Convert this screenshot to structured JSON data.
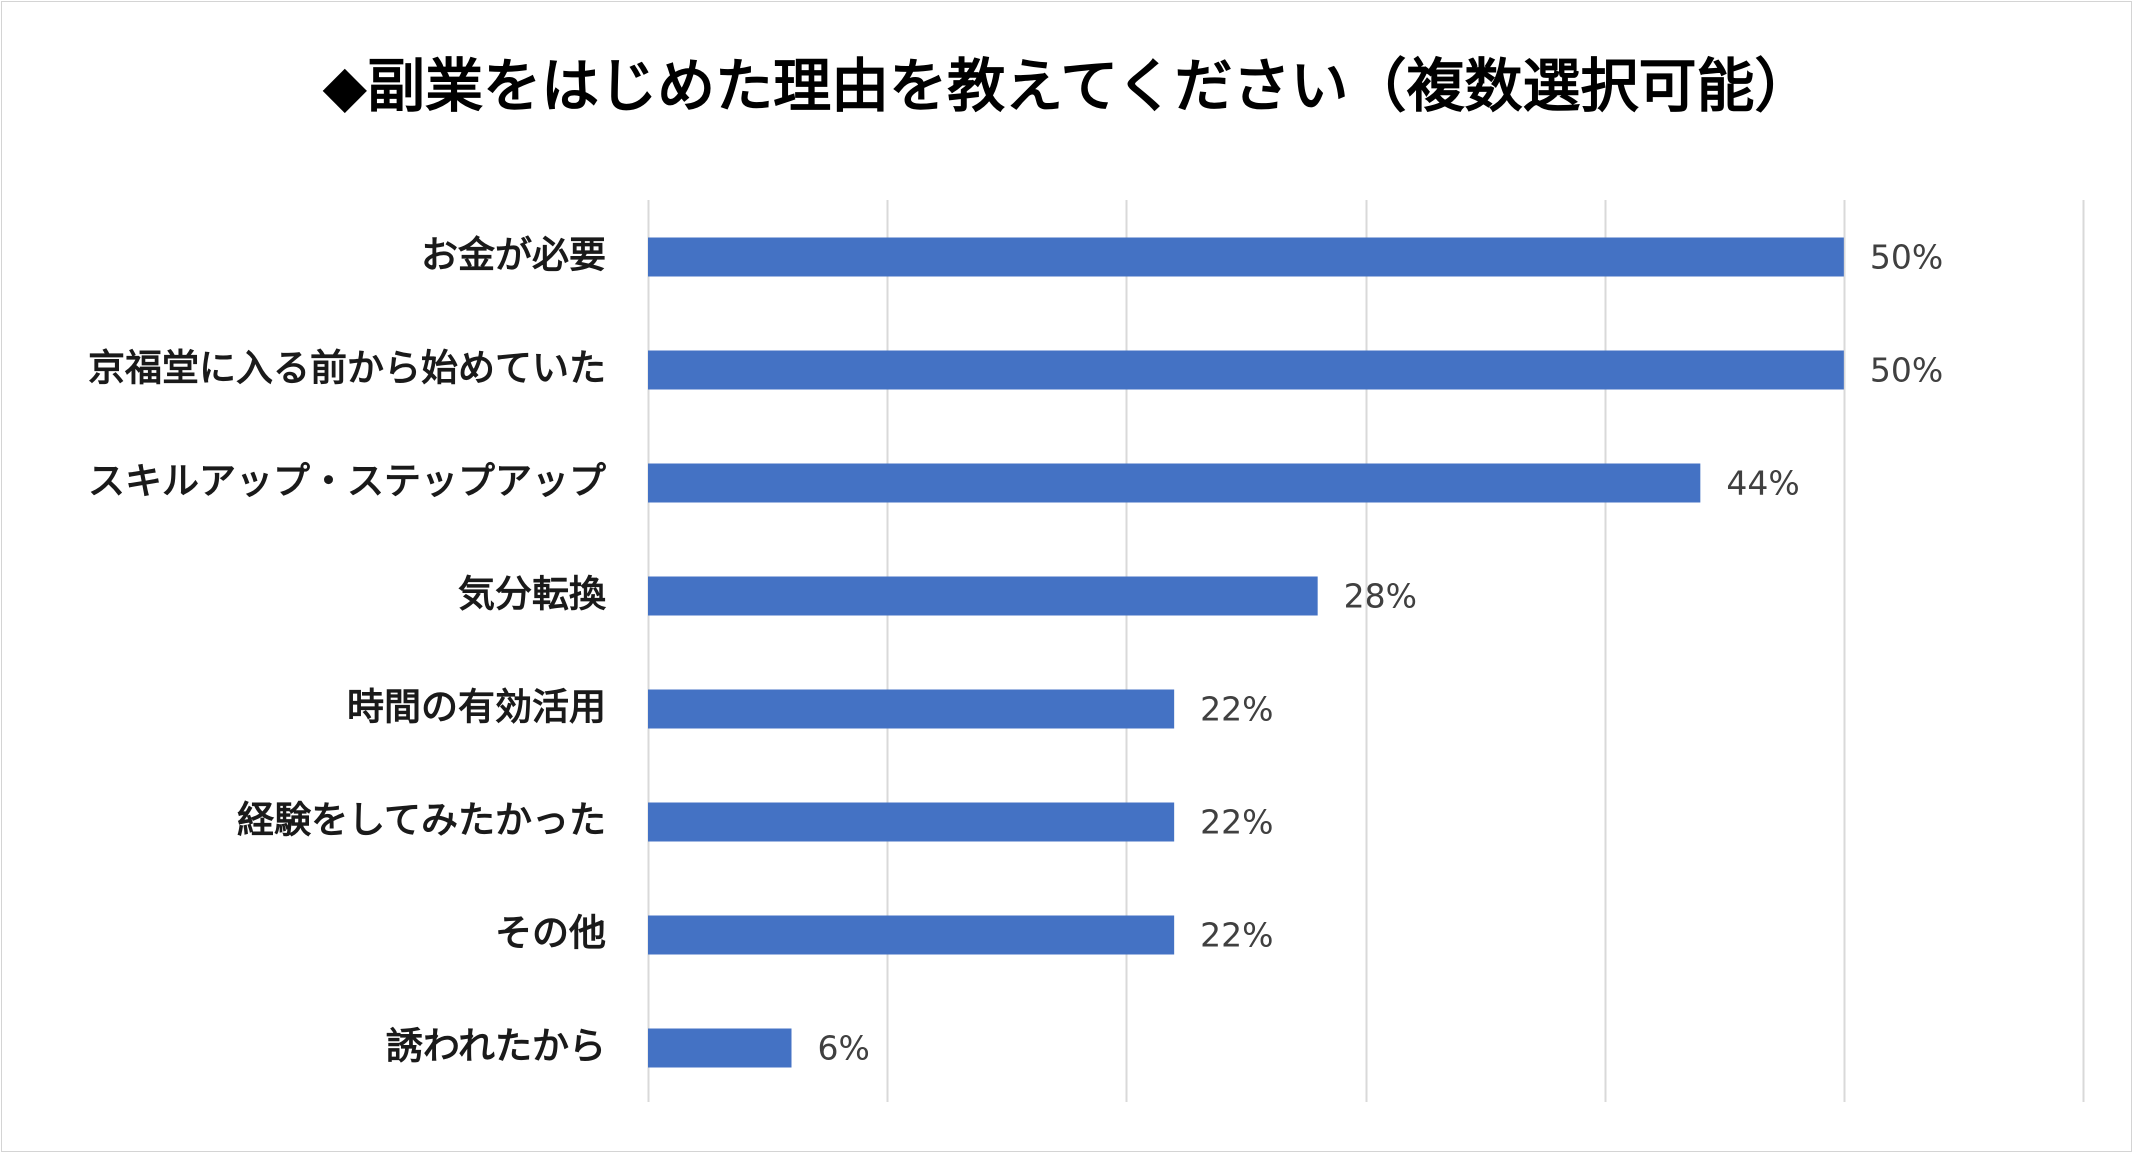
{
  "chart_data": {
    "type": "bar",
    "orientation": "horizontal",
    "title": "◆副業をはじめた理由を教えてください（複数選択可能）",
    "categories": [
      "お金が必要",
      "京福堂に入る前から始めていた",
      "スキルアップ・ステップアップ",
      "気分転換",
      "時間の有効活用",
      "経験をしてみたかった",
      "その他",
      "誘われたから"
    ],
    "values": [
      50,
      50,
      44,
      28,
      22,
      22,
      22,
      6
    ],
    "value_labels": [
      "50%",
      "50%",
      "44%",
      "28%",
      "22%",
      "22%",
      "22%",
      "6%"
    ],
    "xlim": [
      0,
      60
    ],
    "grid": true,
    "legend": "none",
    "bar_color": "#4472C4",
    "grid_color": "#d9d9d9"
  }
}
